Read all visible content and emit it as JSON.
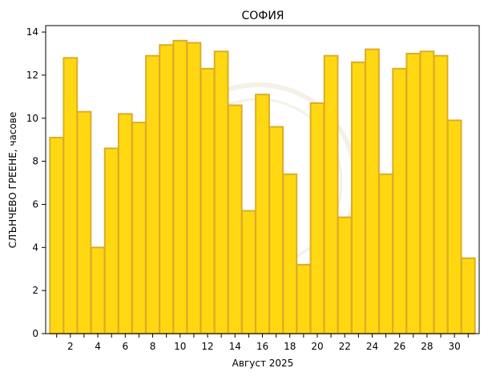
{
  "chart_data": {
    "type": "bar",
    "title": "СОФИЯ",
    "xlabel": "Август  2025",
    "ylabel": "СЛЪНЧЕВО ГРЕЕНЕ,  часове",
    "categories": [
      1,
      2,
      3,
      4,
      5,
      6,
      7,
      8,
      9,
      10,
      11,
      12,
      13,
      14,
      15,
      16,
      17,
      18,
      19,
      20,
      21,
      22,
      23,
      24,
      25,
      26,
      27,
      28,
      29,
      30,
      31
    ],
    "values": [
      9.1,
      12.8,
      10.3,
      4.0,
      8.6,
      10.2,
      9.8,
      12.9,
      13.4,
      13.6,
      13.5,
      12.3,
      13.1,
      10.6,
      5.7,
      11.1,
      9.6,
      7.4,
      3.2,
      10.7,
      12.9,
      5.4,
      12.6,
      13.2,
      7.4,
      12.3,
      13.0,
      13.1,
      12.9,
      9.9,
      3.5
    ],
    "xticks": [
      2,
      4,
      6,
      8,
      10,
      12,
      14,
      16,
      18,
      20,
      22,
      24,
      26,
      28,
      30
    ],
    "yticks": [
      0,
      2,
      4,
      6,
      8,
      10,
      12,
      14
    ],
    "xlim": [
      0.2,
      31.8
    ],
    "ylim": [
      0,
      14.3
    ],
    "grid": false,
    "colors": {
      "bar_fill": "#ffd812",
      "bar_edge": "#dcac28"
    }
  }
}
